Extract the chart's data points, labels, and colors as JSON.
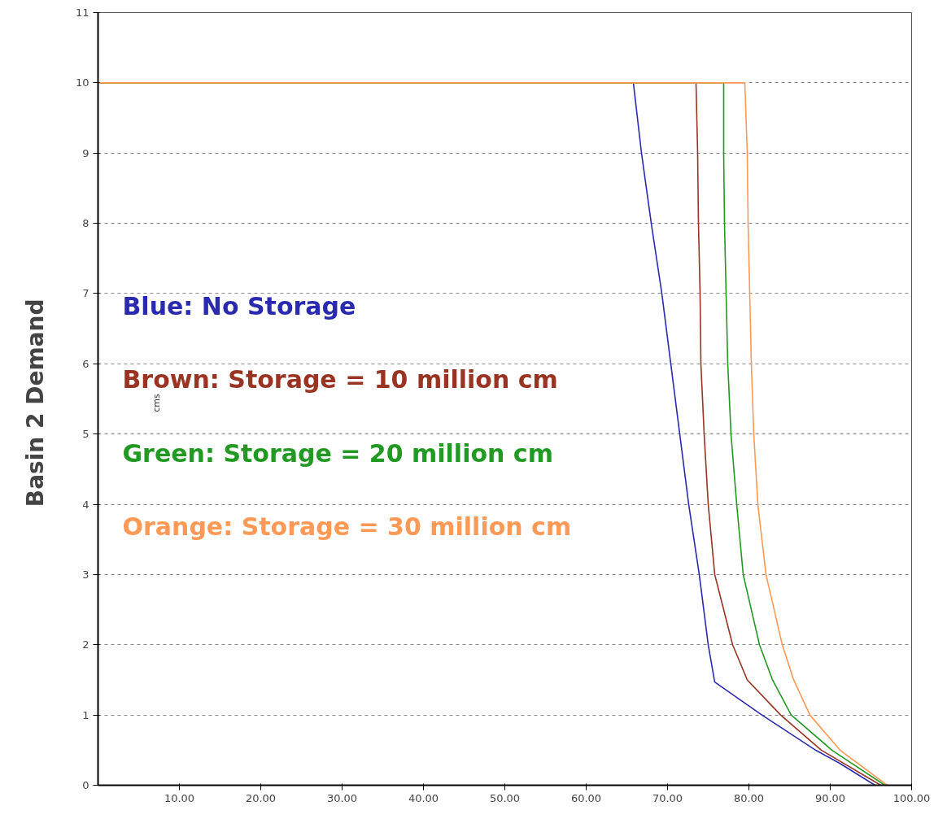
{
  "chart_data": {
    "type": "line",
    "ylabel": "Basin 2  Demand",
    "annotations": [
      "cms"
    ],
    "xlim": [
      0,
      100
    ],
    "ylim": [
      0,
      11
    ],
    "xticks": [
      {
        "value": 10,
        "label": "10.00"
      },
      {
        "value": 20,
        "label": "20.00"
      },
      {
        "value": 30,
        "label": "30.00"
      },
      {
        "value": 40,
        "label": "40.00"
      },
      {
        "value": 50,
        "label": "50.00"
      },
      {
        "value": 60,
        "label": "60.00"
      },
      {
        "value": 70,
        "label": "70.00"
      },
      {
        "value": 80,
        "label": "80.00"
      },
      {
        "value": 90,
        "label": "90.00"
      },
      {
        "value": 100,
        "label": "100.00"
      }
    ],
    "yticks": [
      0,
      1,
      2,
      3,
      4,
      5,
      6,
      7,
      8,
      9,
      10,
      11
    ],
    "grid": "y",
    "legend": "left",
    "line_style": "solid",
    "series": [
      {
        "name": "Blue: No Storage",
        "color": "#2a2ab0",
        "x": [
          0,
          65.8,
          66.8,
          68.0,
          69.3,
          70.4,
          71.5,
          72.6,
          73.9,
          75.0,
          75.8,
          81.6,
          88.2,
          91.2,
          95.5
        ],
        "values": [
          10,
          10,
          9,
          8,
          7,
          6,
          5,
          4,
          3,
          2,
          1.47,
          1,
          0.5,
          0.31,
          0
        ]
      },
      {
        "name": "Brown: Storage = 10 million cm",
        "color": "#993322",
        "x": [
          0,
          73.5,
          73.7,
          73.8,
          74.0,
          74.1,
          74.5,
          75.0,
          75.8,
          78.0,
          79.8,
          83.9,
          88.9,
          96.2
        ],
        "values": [
          10,
          10,
          9,
          8,
          7,
          6,
          5,
          4,
          3,
          2,
          1.5,
          1,
          0.5,
          0
        ]
      },
      {
        "name": "Green: Storage = 20 million cm",
        "color": "#229922",
        "x": [
          0,
          76.9,
          76.9,
          77.0,
          77.2,
          77.4,
          77.8,
          78.5,
          79.3,
          81.3,
          82.9,
          85.2,
          90.2,
          96.7
        ],
        "values": [
          10,
          10,
          9,
          8,
          7,
          6,
          5,
          4,
          3,
          2,
          1.5,
          1,
          0.5,
          0
        ]
      },
      {
        "name": "Orange: Storage = 30 million cm",
        "color": "#ff9955",
        "x": [
          0,
          79.5,
          79.8,
          79.9,
          80.1,
          80.3,
          80.6,
          81.1,
          82.1,
          84.1,
          85.5,
          87.5,
          91.2,
          97.0
        ],
        "values": [
          10,
          10,
          9,
          8,
          7,
          6,
          5,
          4,
          3,
          2,
          1.5,
          1,
          0.5,
          0
        ]
      }
    ]
  }
}
